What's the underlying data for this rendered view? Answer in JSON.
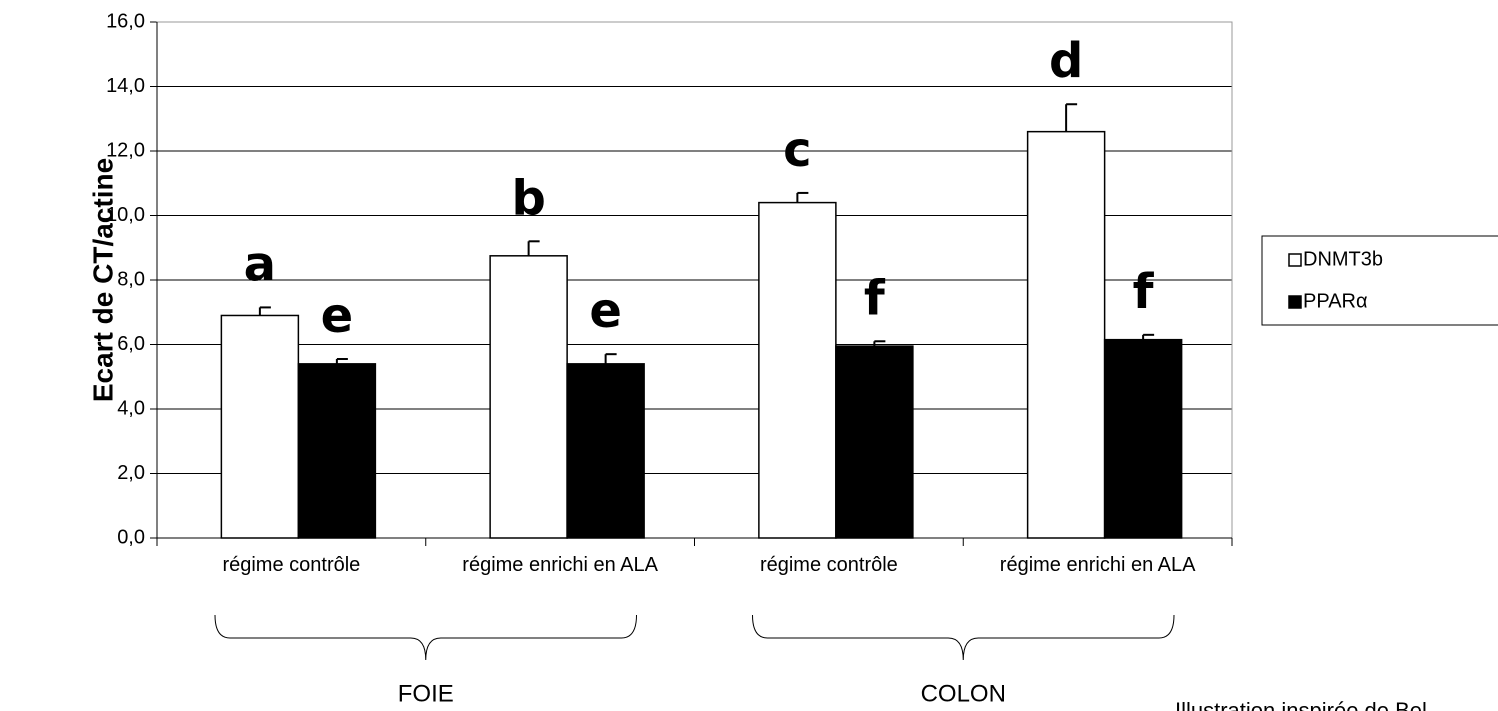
{
  "chart_data": {
    "type": "bar",
    "ylabel": "Ecart de CT/actine",
    "categories": [
      "régime contrôle",
      "régime enrichi en ALA",
      "régime contrôle",
      "régime enrichi en ALA"
    ],
    "groups": [
      "FOIE",
      "COLON"
    ],
    "series": [
      {
        "name": "DNMT3b",
        "color": "#ffffff",
        "values": [
          6.9,
          8.75,
          10.4,
          12.6
        ],
        "errors": [
          0.25,
          0.45,
          0.3,
          0.85
        ],
        "labels": [
          "a",
          "b",
          "c",
          "d"
        ]
      },
      {
        "name": "PPARα",
        "color": "#000000",
        "values": [
          5.4,
          5.4,
          5.95,
          6.15
        ],
        "errors": [
          0.15,
          0.3,
          0.15,
          0.15
        ],
        "labels": [
          "e",
          "e",
          "f",
          "f"
        ]
      }
    ],
    "ylim": [
      0,
      16
    ],
    "yticks": [
      {
        "value": 0,
        "label": "0,0"
      },
      {
        "value": 2,
        "label": "2,0"
      },
      {
        "value": 4,
        "label": "4,0"
      },
      {
        "value": 6,
        "label": "6,0"
      },
      {
        "value": 8,
        "label": "8,0"
      },
      {
        "value": 10,
        "label": "10,0"
      },
      {
        "value": 12,
        "label": "12,0"
      },
      {
        "value": 14,
        "label": "14,0"
      },
      {
        "value": 16,
        "label": "16,0"
      }
    ],
    "grid": true,
    "legend": "right",
    "footnote": "Illustration inspirée de Bel"
  }
}
